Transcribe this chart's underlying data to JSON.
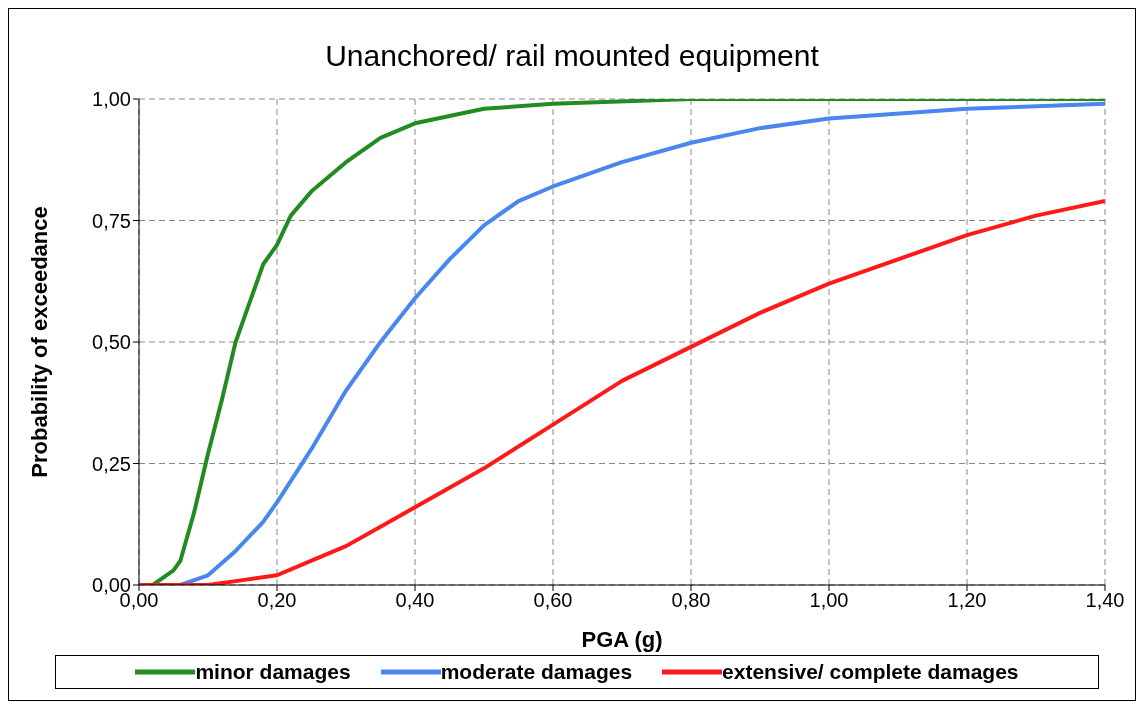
{
  "chart_data": {
    "type": "line",
    "title": "Unanchored/ rail mounted equipment",
    "xlabel": "PGA (g)",
    "ylabel": "Probability of exceedance",
    "xlim": [
      0,
      1.4
    ],
    "ylim": [
      0,
      1
    ],
    "xticks": [
      {
        "value": 0,
        "label": "0,00"
      },
      {
        "value": 0.2,
        "label": "0,20"
      },
      {
        "value": 0.4,
        "label": "0,40"
      },
      {
        "value": 0.6,
        "label": "0,60"
      },
      {
        "value": 0.8,
        "label": "0,80"
      },
      {
        "value": 1,
        "label": "1,00"
      },
      {
        "value": 1.2,
        "label": "1,20"
      },
      {
        "value": 1.4,
        "label": "1,40"
      }
    ],
    "yticks": [
      {
        "value": 0,
        "label": "0,00"
      },
      {
        "value": 0.25,
        "label": "0,25"
      },
      {
        "value": 0.5,
        "label": "0,50"
      },
      {
        "value": 0.75,
        "label": "0,75"
      },
      {
        "value": 1,
        "label": "1,00"
      }
    ],
    "grid": true,
    "legend": "bottom",
    "marker": "none",
    "line_style": "solid",
    "series": [
      {
        "name": "minor damages",
        "color": "#228b22",
        "x": [
          0,
          0.02,
          0.05,
          0.06,
          0.08,
          0.1,
          0.12,
          0.14,
          0.16,
          0.18,
          0.2,
          0.22,
          0.25,
          0.3,
          0.35,
          0.4,
          0.5,
          0.6,
          0.8,
          1.0,
          1.2,
          1.4
        ],
        "values": [
          0,
          0,
          0.03,
          0.05,
          0.15,
          0.27,
          0.38,
          0.5,
          0.58,
          0.66,
          0.7,
          0.76,
          0.81,
          0.87,
          0.92,
          0.95,
          0.98,
          0.99,
          1,
          1,
          1,
          1
        ]
      },
      {
        "name": "moderate damages",
        "color": "#4a86f0",
        "x": [
          0,
          0.06,
          0.1,
          0.14,
          0.18,
          0.2,
          0.25,
          0.3,
          0.35,
          0.4,
          0.45,
          0.5,
          0.55,
          0.6,
          0.7,
          0.8,
          0.9,
          1.0,
          1.2,
          1.4
        ],
        "values": [
          0,
          0,
          0.02,
          0.07,
          0.13,
          0.17,
          0.28,
          0.4,
          0.5,
          0.59,
          0.67,
          0.74,
          0.79,
          0.82,
          0.87,
          0.91,
          0.94,
          0.96,
          0.98,
          0.99
        ]
      },
      {
        "name": "extensive/ complete damages",
        "color": "#ff1a1a",
        "x": [
          0,
          0.1,
          0.15,
          0.2,
          0.25,
          0.3,
          0.35,
          0.4,
          0.5,
          0.6,
          0.7,
          0.8,
          0.9,
          1.0,
          1.1,
          1.2,
          1.3,
          1.4
        ],
        "values": [
          0,
          0,
          0.01,
          0.02,
          0.05,
          0.08,
          0.12,
          0.16,
          0.24,
          0.33,
          0.42,
          0.49,
          0.56,
          0.62,
          0.67,
          0.72,
          0.76,
          0.79
        ]
      }
    ]
  }
}
